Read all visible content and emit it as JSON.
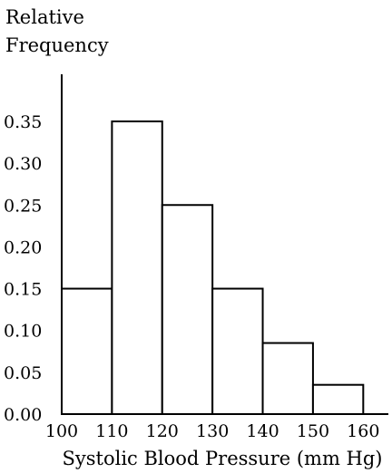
{
  "chart_data": {
    "type": "histogram",
    "ylabel_lines": [
      "Relative",
      "Frequency"
    ],
    "xlabel": "Systolic Blood Pressure (mm Hg)",
    "bins": [
      {
        "start": 100,
        "end": 110,
        "value": 0.15
      },
      {
        "start": 110,
        "end": 120,
        "value": 0.35
      },
      {
        "start": 120,
        "end": 130,
        "value": 0.25
      },
      {
        "start": 130,
        "end": 140,
        "value": 0.15
      },
      {
        "start": 140,
        "end": 150,
        "value": 0.085
      },
      {
        "start": 150,
        "end": 160,
        "value": 0.035
      }
    ],
    "x_ticks": [
      "100",
      "110",
      "120",
      "130",
      "140",
      "150",
      "160"
    ],
    "y_ticks": [
      "0.00",
      "0.05",
      "0.10",
      "0.15",
      "0.20",
      "0.25",
      "0.30",
      "0.35"
    ],
    "xlim": [
      100,
      165
    ],
    "ylim": [
      0,
      0.4
    ],
    "grid": false,
    "colors": {
      "bar_fill": "#ffffff",
      "bar_stroke": "#000000",
      "axis": "#000000",
      "text": "#000000"
    }
  }
}
